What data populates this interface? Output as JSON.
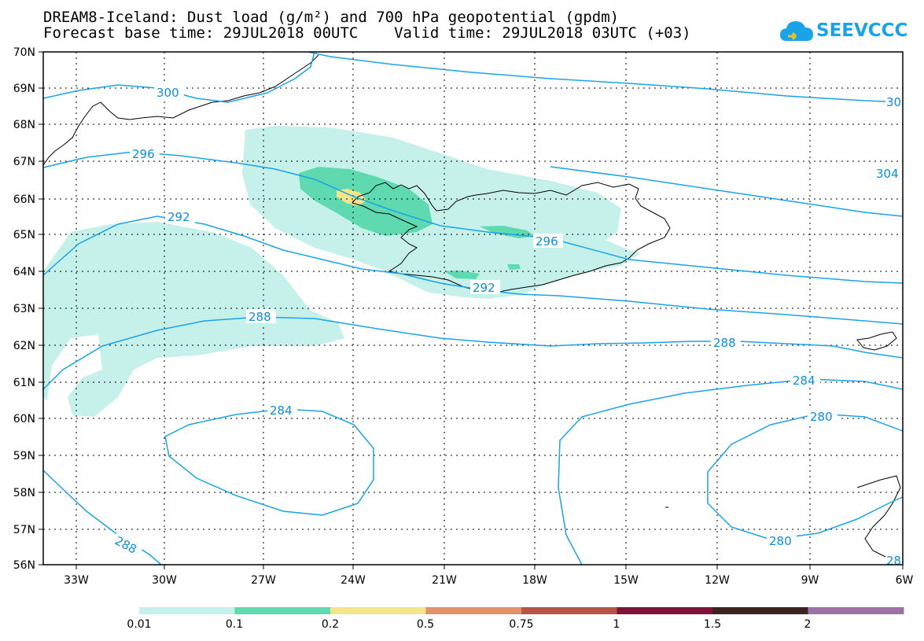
{
  "title_line1": "DREAM8-Iceland: Dust load (g/m²) and 700 hPa geopotential (gpdm)",
  "title_line2": "Forecast base time: 29JUL2018 00UTC    Valid time: 29JUL2018 03UTC (+03)",
  "logo_text": "SEEVCCC",
  "map": {
    "lon_labels": [
      "33W",
      "30W",
      "27W",
      "24W",
      "21W",
      "18W",
      "15W",
      "12W",
      "9W",
      "6W"
    ],
    "lat_labels": [
      "70N",
      "69N",
      "68N",
      "67N",
      "66N",
      "65N",
      "64N",
      "63N",
      "62N",
      "61N",
      "60N",
      "59N",
      "58N",
      "57N",
      "56N"
    ],
    "contour_labels": [
      "300",
      "30",
      "296",
      "304",
      "292",
      "296",
      "292",
      "288",
      "288",
      "284",
      "284",
      "280",
      "280",
      "288",
      "28"
    ],
    "contour_color": "#1aa3e8",
    "coast_color": "#000000"
  },
  "colorbar": {
    "tick_labels": [
      "0.01",
      "0.1",
      "0.2",
      "0.5",
      "0.75",
      "1",
      "1.5",
      "2"
    ],
    "colors": [
      "#c6f1ea",
      "#5ed9b0",
      "#f3e58a",
      "#e3906c",
      "#b75648",
      "#7e1239",
      "#3b2420",
      "#9c73a4"
    ]
  }
}
